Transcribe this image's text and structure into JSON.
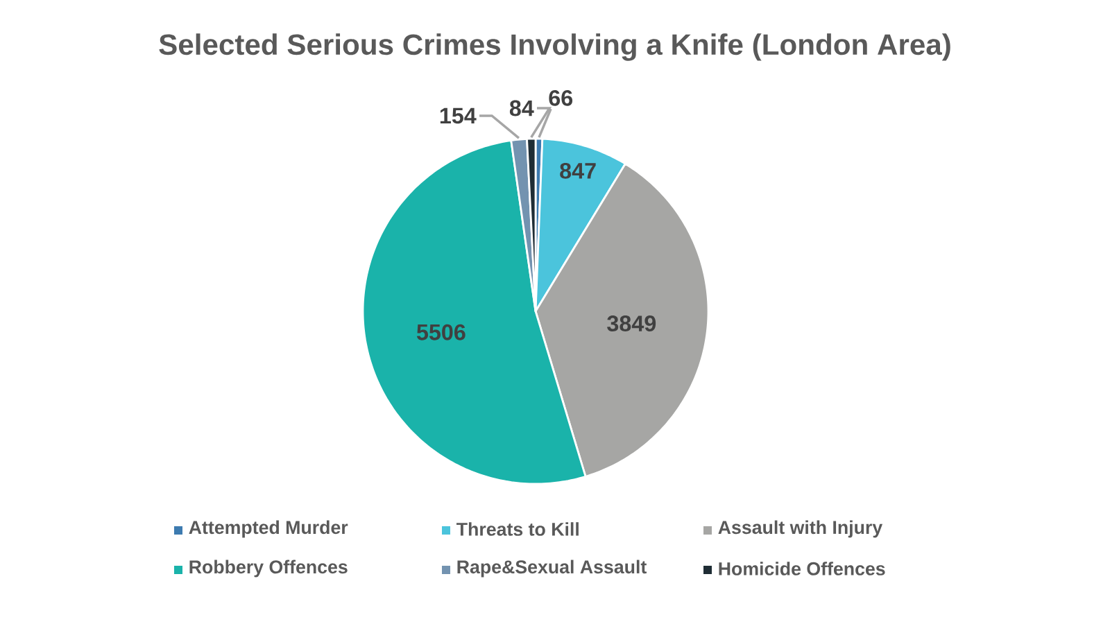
{
  "chart_data": {
    "type": "pie",
    "title": "Selected Serious Crimes Involving a Knife (London Area)",
    "categories": [
      "Attempted Murder",
      "Threats to Kill",
      "Assault with Injury",
      "Robbery Offences",
      "Rape&Sexual Assault",
      "Homicide Offences"
    ],
    "values": [
      66,
      847,
      3849,
      5506,
      154,
      84
    ],
    "colors": [
      "#3d7bb0",
      "#4bc4dc",
      "#a6a6a4",
      "#1ab3aa",
      "#7393b0",
      "#1f2d35"
    ],
    "data_labels": true,
    "legend": "bottom"
  }
}
